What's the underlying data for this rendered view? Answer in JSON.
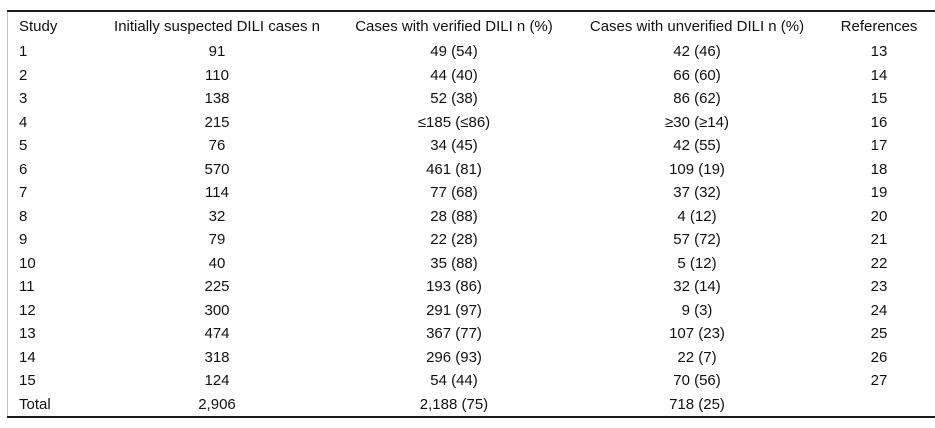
{
  "table": {
    "columns": [
      "Study",
      "Initially suspected DILI cases n",
      "Cases with verified DILI n (%)",
      "Cases with unverified DILI n (%)",
      "References"
    ],
    "rows": [
      [
        "1",
        "91",
        "49 (54)",
        "42 (46)",
        "13"
      ],
      [
        "2",
        "110",
        "44 (40)",
        "66 (60)",
        "14"
      ],
      [
        "3",
        "138",
        "52 (38)",
        "86 (62)",
        "15"
      ],
      [
        "4",
        "215",
        "≤185 (≤86)",
        "≥30 (≥14)",
        "16"
      ],
      [
        "5",
        "76",
        "34 (45)",
        "42 (55)",
        "17"
      ],
      [
        "6",
        "570",
        "461 (81)",
        "109 (19)",
        "18"
      ],
      [
        "7",
        "114",
        "77 (68)",
        "37 (32)",
        "19"
      ],
      [
        "8",
        "32",
        "28 (88)",
        "4 (12)",
        "20"
      ],
      [
        "9",
        "79",
        "22 (28)",
        "57 (72)",
        "21"
      ],
      [
        "10",
        "40",
        "35 (88)",
        "5 (12)",
        "22"
      ],
      [
        "11",
        "225",
        "193 (86)",
        "32 (14)",
        "23"
      ],
      [
        "12",
        "300",
        "291 (97)",
        "9 (3)",
        "24"
      ],
      [
        "13",
        "474",
        "367 (77)",
        "107 (23)",
        "25"
      ],
      [
        "14",
        "318",
        "296 (93)",
        "22 (7)",
        "26"
      ],
      [
        "15",
        "124",
        "54 (44)",
        "70 (56)",
        "27"
      ],
      [
        "Total",
        "2,906",
        "2,188 (75)",
        "718 (25)",
        ""
      ]
    ]
  },
  "chart_data": {
    "type": "table",
    "title": "",
    "columns": [
      "Study",
      "Initially suspected DILI cases n",
      "Cases with verified DILI n (%)",
      "Cases with unverified DILI n (%)",
      "References"
    ],
    "rows": [
      [
        "1",
        "91",
        "49 (54)",
        "42 (46)",
        "13"
      ],
      [
        "2",
        "110",
        "44 (40)",
        "66 (60)",
        "14"
      ],
      [
        "3",
        "138",
        "52 (38)",
        "86 (62)",
        "15"
      ],
      [
        "4",
        "215",
        "≤185 (≤86)",
        "≥30 (≥14)",
        "16"
      ],
      [
        "5",
        "76",
        "34 (45)",
        "42 (55)",
        "17"
      ],
      [
        "6",
        "570",
        "461 (81)",
        "109 (19)",
        "18"
      ],
      [
        "7",
        "114",
        "77 (68)",
        "37 (32)",
        "19"
      ],
      [
        "8",
        "32",
        "28 (88)",
        "4 (12)",
        "20"
      ],
      [
        "9",
        "79",
        "22 (28)",
        "57 (72)",
        "21"
      ],
      [
        "10",
        "40",
        "35 (88)",
        "5 (12)",
        "22"
      ],
      [
        "11",
        "225",
        "193 (86)",
        "32 (14)",
        "23"
      ],
      [
        "12",
        "300",
        "291 (97)",
        "9 (3)",
        "24"
      ],
      [
        "13",
        "474",
        "367 (77)",
        "107 (23)",
        "25"
      ],
      [
        "14",
        "318",
        "296 (93)",
        "22 (7)",
        "26"
      ],
      [
        "15",
        "124",
        "54 (44)",
        "70 (56)",
        "27"
      ],
      [
        "Total",
        "2,906",
        "2,188 (75)",
        "718 (25)",
        ""
      ]
    ],
    "colors": {
      "rule": "#1c1c1c",
      "side_border": "#c2c2c2",
      "text": "#111111",
      "background": "#ffffff"
    }
  }
}
